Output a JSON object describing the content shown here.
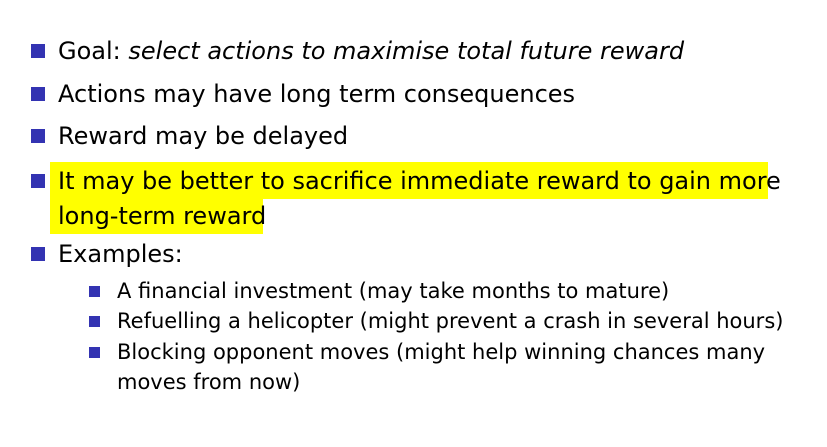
{
  "bullets": [
    {
      "prefix": "Goal: ",
      "emphasis": "select actions to maximise total future reward"
    },
    {
      "text": "Actions may have long term consequences"
    },
    {
      "text": "Reward may be delayed"
    },
    {
      "line1": "It may be better to sacrifice immediate reward to gain more",
      "line2": "long-term reward",
      "highlighted": true
    },
    {
      "text": "Examples:"
    }
  ],
  "examples": [
    {
      "text": "A financial investment (may take months to mature)"
    },
    {
      "text": "Refuelling a helicopter (might prevent a crash in several hours)"
    },
    {
      "line1": "Blocking opponent moves (might help winning chances many",
      "line2": "moves from now)"
    }
  ],
  "colors": {
    "bullet": "#3333b2",
    "highlight": "#ffff00",
    "text": "#000000"
  }
}
